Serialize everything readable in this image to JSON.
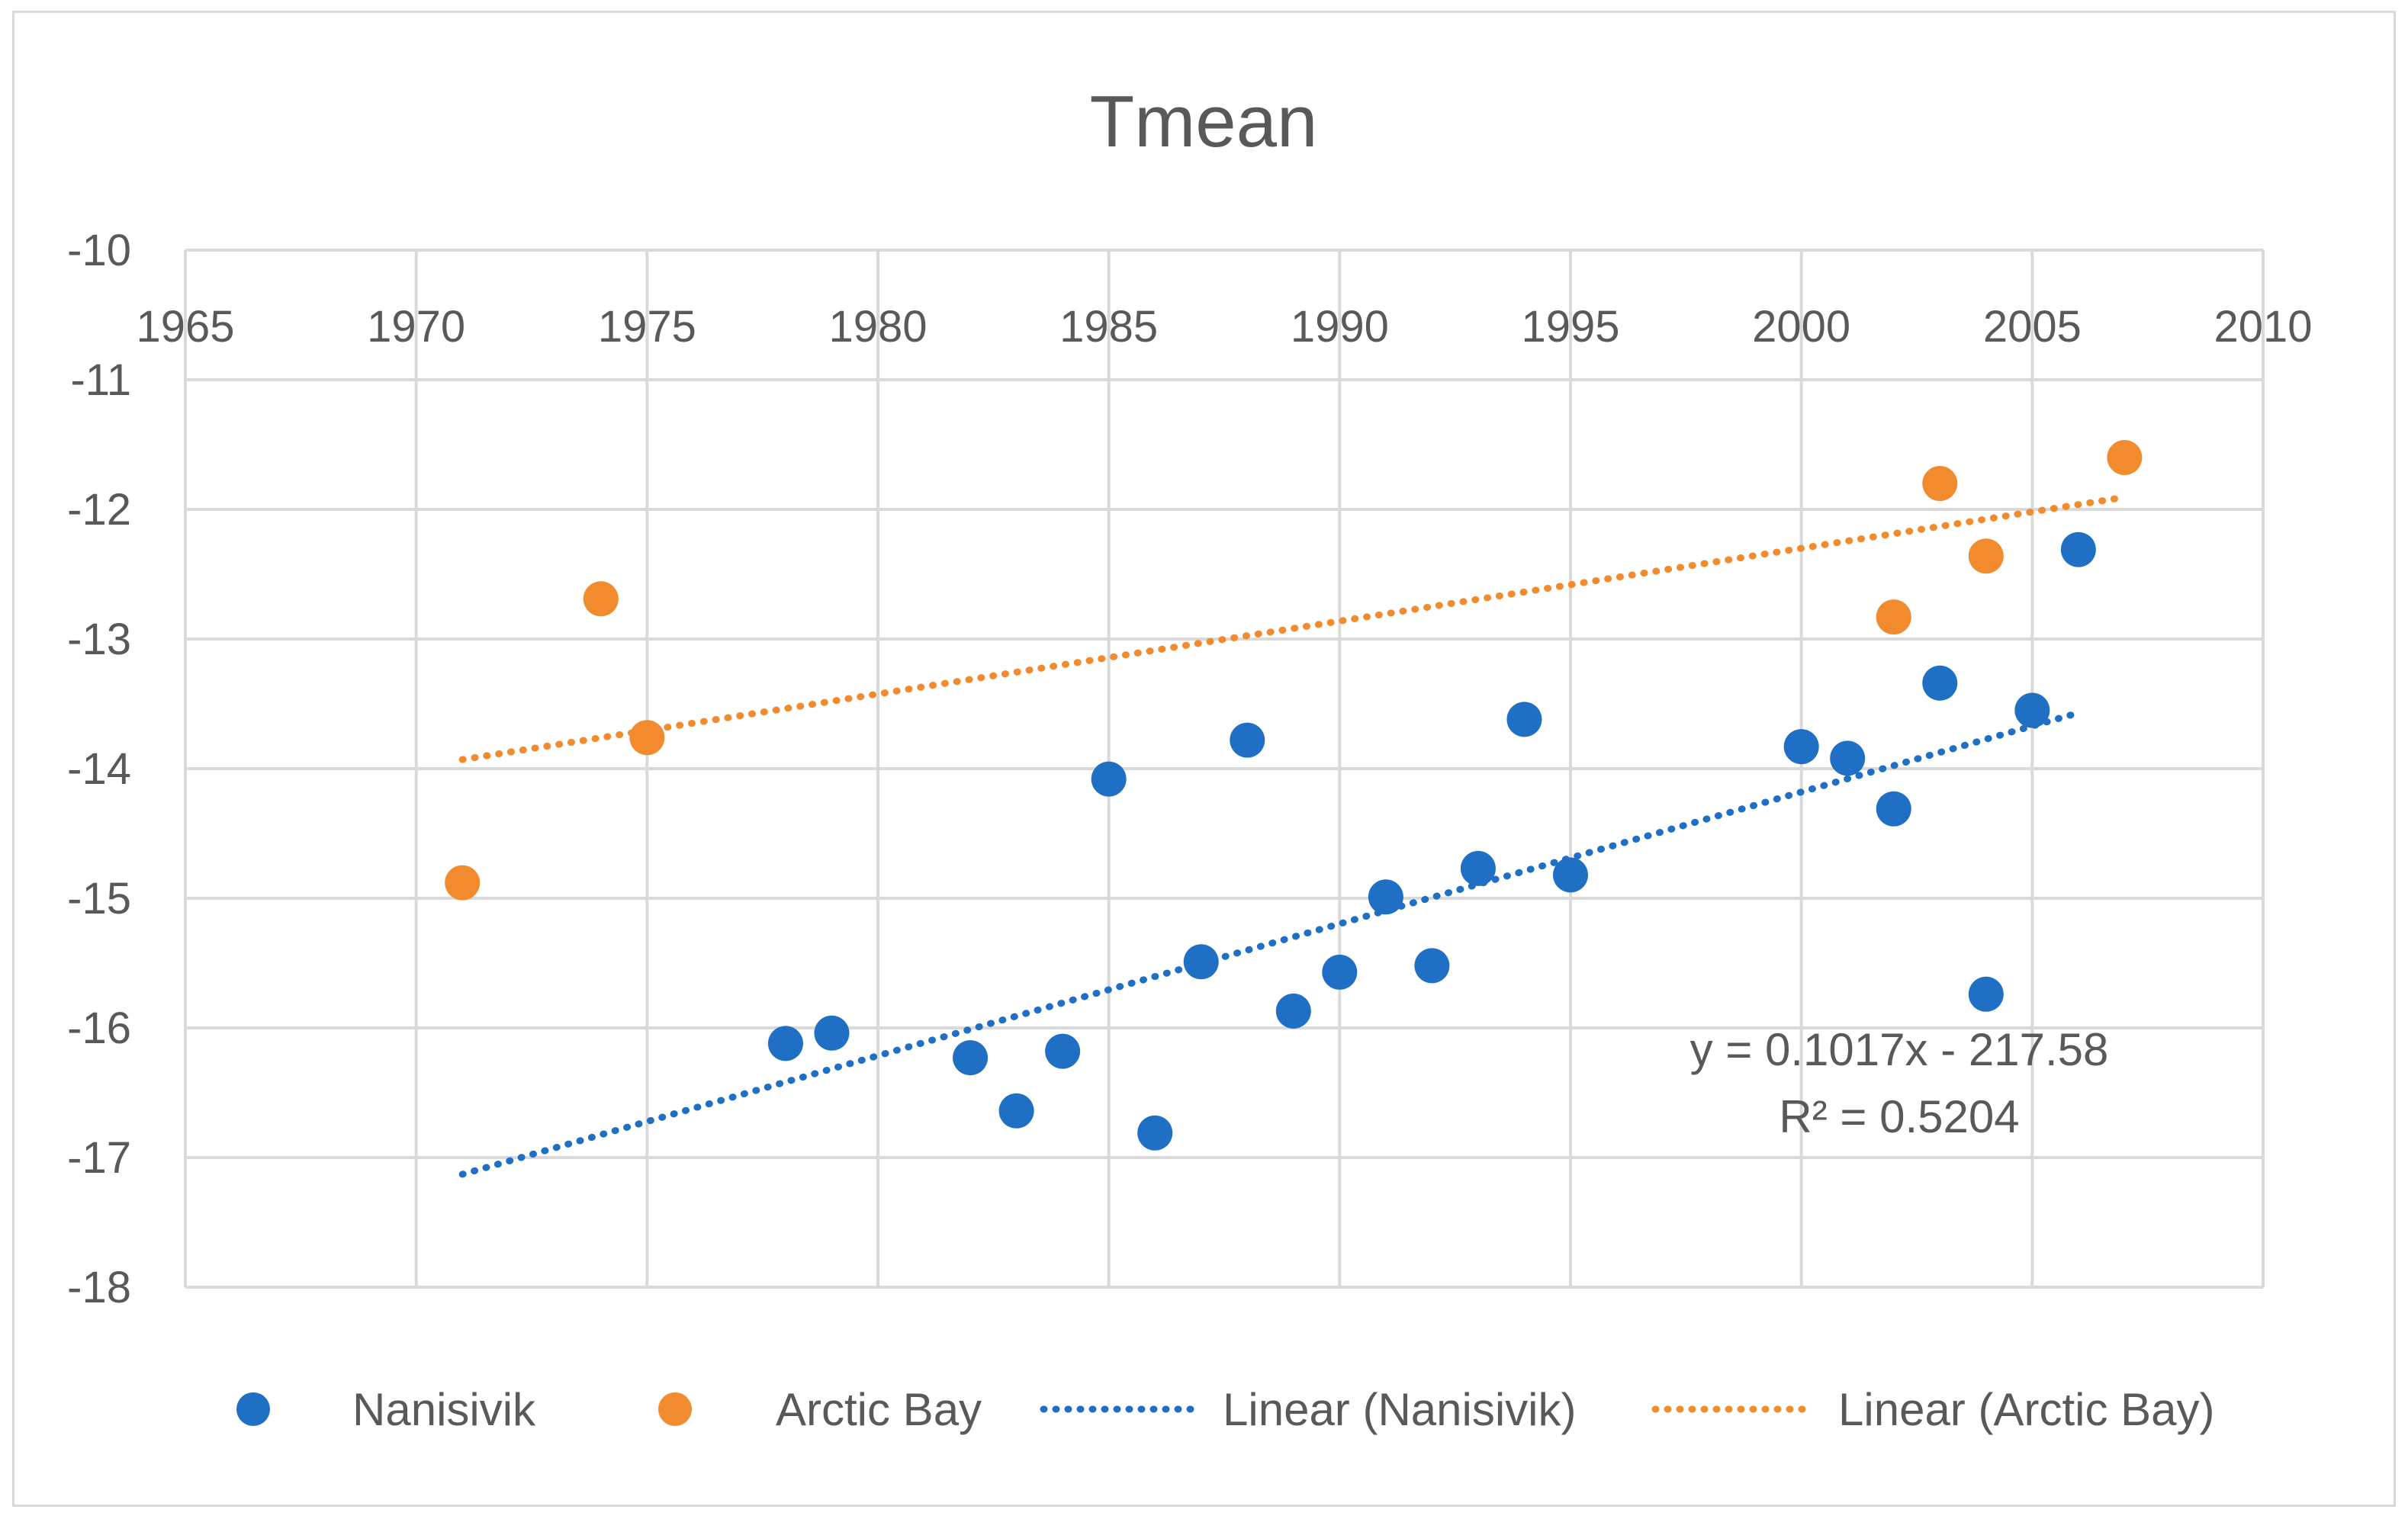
{
  "chart_data": {
    "type": "scatter",
    "title": "Tmean",
    "xlabel": "",
    "ylabel": "",
    "xlim": [
      1965,
      2010
    ],
    "ylim": [
      -18,
      -10
    ],
    "x_ticks": [
      1965,
      1970,
      1975,
      1980,
      1985,
      1990,
      1995,
      2000,
      2005,
      2010
    ],
    "y_ticks": [
      -10,
      -11,
      -12,
      -13,
      -14,
      -15,
      -16,
      -17,
      -18
    ],
    "grid": true,
    "legend_position": "bottom",
    "series": [
      {
        "name": "Nanisivik",
        "color": "#1f6fc4",
        "points": [
          [
            1978,
            -16.12
          ],
          [
            1979,
            -16.04
          ],
          [
            1982,
            -16.23
          ],
          [
            1983,
            -16.64
          ],
          [
            1984,
            -16.18
          ],
          [
            1985,
            -14.08
          ],
          [
            1986,
            -16.81
          ],
          [
            1987,
            -15.49
          ],
          [
            1988,
            -13.78
          ],
          [
            1989,
            -15.87
          ],
          [
            1990,
            -15.57
          ],
          [
            1991,
            -14.99
          ],
          [
            1992,
            -15.52
          ],
          [
            1993,
            -14.77
          ],
          [
            1994,
            -13.62
          ],
          [
            1995,
            -14.82
          ],
          [
            2000,
            -13.83
          ],
          [
            2001,
            -13.92
          ],
          [
            2002,
            -14.31
          ],
          [
            2003,
            -13.34
          ],
          [
            2004,
            -15.74
          ],
          [
            2005,
            -13.55
          ],
          [
            2006,
            -12.31
          ]
        ]
      },
      {
        "name": "Arctic Bay",
        "color": "#f28a2e",
        "points": [
          [
            1971,
            -14.88
          ],
          [
            1974,
            -12.69
          ],
          [
            1975,
            -13.76
          ],
          [
            2002,
            -12.83
          ],
          [
            2003,
            -11.8
          ],
          [
            2004,
            -12.36
          ],
          [
            2007,
            -11.6
          ]
        ]
      }
    ],
    "trendlines": [
      {
        "name": "Linear (Nanisivik)",
        "color": "#1f6fc4",
        "slope": 0.1017,
        "intercept": -217.58,
        "x_range": [
          1971,
          2006
        ],
        "equation": "y = 0.1017x - 217.58",
        "r_squared": "R² = 0.5204"
      },
      {
        "name": "Linear (Arctic Bay)",
        "color": "#f28a2e",
        "slope": 0.0562,
        "intercept": -124.7,
        "x_range": [
          1971,
          2007
        ]
      }
    ],
    "legend": [
      "Nanisivik",
      "Arctic Bay",
      "Linear (Nanisivik)",
      "Linear (Arctic Bay)"
    ]
  },
  "colors": {
    "gridline": "#d9d9d9",
    "text": "#595959"
  }
}
